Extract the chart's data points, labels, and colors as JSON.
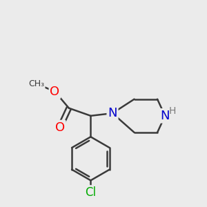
{
  "bg_color": "#ebebeb",
  "bond_color": "#3a3a3a",
  "bond_width": 1.8,
  "atom_colors": {
    "O": "#ff0000",
    "N": "#0000cc",
    "Cl": "#00aa00",
    "H": "#7a7a7a",
    "C": "#3a3a3a"
  },
  "font_size_atoms": 13,
  "font_size_h": 10
}
